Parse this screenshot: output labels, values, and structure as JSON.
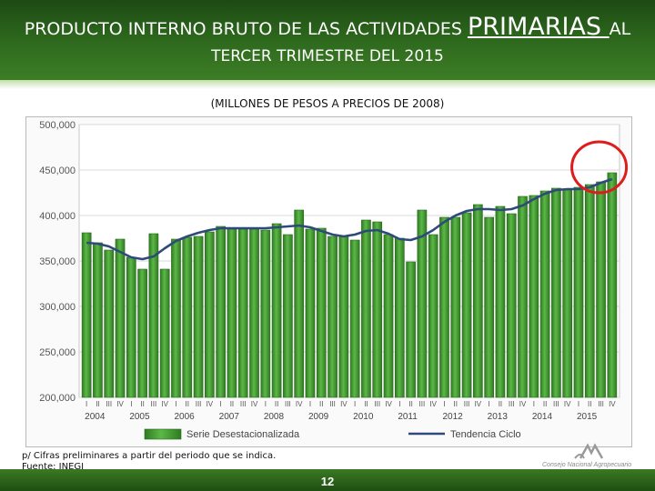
{
  "header": {
    "title_part1": "PRODUCTO INTERNO BRUTO DE LAS ACTIVIDADES ",
    "title_big": "PRIMARIAS ",
    "title_part2": "AL",
    "title_line2": "TERCER TRIMESTRE DEL 2015"
  },
  "subtitle": "(MILLONES DE PESOS A PRECIOS DE 2008)",
  "footnote": {
    "line1": "p/ Cifras preliminares a partir del periodo que se indica.",
    "line2": "Fuente: INEGI"
  },
  "page_number": "12",
  "logo_text": "Consejo Nacional Agropecuario",
  "colors": {
    "header_green": "#2f6b1e",
    "bar_fill": "#5cb847",
    "bar_dark": "#2f7a22",
    "trend_line": "#2e4a7a",
    "highlight_circle": "#e01b1b"
  },
  "chart_data": {
    "type": "bar",
    "title": "",
    "xlabel": "",
    "ylabel": "",
    "ylim": [
      200000,
      500000
    ],
    "y_ticks": [
      "200,000",
      "250,000",
      "300,000",
      "350,000",
      "400,000",
      "450,000",
      "500,000"
    ],
    "quarter_labels": [
      "I",
      "II",
      "III",
      "IV"
    ],
    "year_labels": [
      "2004",
      "2005",
      "2006",
      "2007",
      "2008",
      "2009",
      "2010",
      "2011",
      "2012",
      "2013",
      "2014",
      "2015"
    ],
    "grid": true,
    "legend": "bottom",
    "annotation": "red circle highlighting the last quarters of 2015",
    "series": [
      {
        "name": "Serie Desestacionalizada",
        "type": "bar",
        "values": [
          381000,
          370000,
          362000,
          374000,
          354000,
          341000,
          380000,
          341000,
          374000,
          376000,
          377000,
          382000,
          388000,
          385000,
          385000,
          385000,
          384000,
          391000,
          379000,
          406000,
          385000,
          386000,
          377000,
          377000,
          373000,
          395000,
          393000,
          379000,
          375000,
          349000,
          406000,
          379000,
          398000,
          398000,
          403000,
          412000,
          398000,
          410000,
          402000,
          421000,
          422000,
          427000,
          430000,
          428000,
          431000,
          434000,
          437000,
          447000
        ]
      },
      {
        "name": "Tendencia Ciclo",
        "type": "line",
        "values": [
          370000,
          369000,
          366000,
          360000,
          354000,
          352000,
          355000,
          364000,
          372000,
          377000,
          381000,
          384000,
          386000,
          386000,
          386000,
          386000,
          386000,
          387000,
          388000,
          389000,
          387000,
          383000,
          379000,
          377000,
          379000,
          383000,
          384000,
          380000,
          374000,
          373000,
          377000,
          384000,
          393000,
          400000,
          405000,
          407000,
          407000,
          406000,
          407000,
          411000,
          418000,
          424000,
          428000,
          429000,
          429000,
          431000,
          436000,
          440000
        ]
      }
    ]
  }
}
